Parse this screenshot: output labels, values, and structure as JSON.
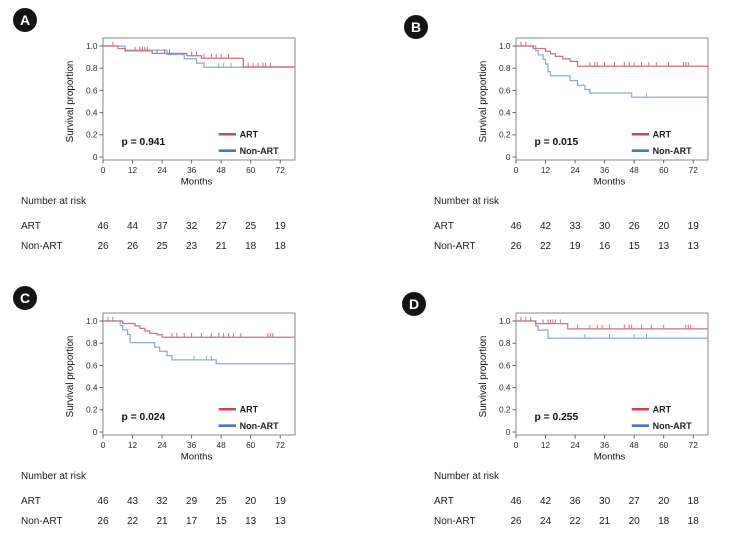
{
  "figure": {
    "ylabel": "Survival proportion",
    "xlabel": "Months"
  },
  "chart_data": [
    {
      "type": "line",
      "subtype": "kaplan-meier-step",
      "panel": "A",
      "xlabel": "Months",
      "ylabel": "Survival proportion",
      "p_value_label": "p = 0.941",
      "xlim": [
        0,
        78
      ],
      "ylim": [
        0,
        1.05
      ],
      "xticks": [
        0,
        12,
        24,
        36,
        48,
        60,
        72
      ],
      "yticks": [
        0,
        0.2,
        0.4,
        0.6,
        0.8,
        1.0
      ],
      "ytick_labels": [
        "0",
        "0.2",
        "0.4",
        "0.6",
        "0.8",
        "1.0"
      ],
      "grid": false,
      "legend_position": "inside-lower-right",
      "legend": [
        {
          "name": "ART",
          "color": "#c04a59"
        },
        {
          "name": "Non-ART",
          "color": "#4d74ba"
        }
      ],
      "series": [
        {
          "name": "Non-ART",
          "line_color": "#8fa9d1",
          "steps": [
            [
              9,
              0.962
            ],
            [
              26,
              0.923
            ],
            [
              33,
              0.885
            ],
            [
              38,
              0.846
            ],
            [
              41,
              0.808
            ]
          ],
          "censor_ticks": [
            47,
            49,
            52
          ]
        },
        {
          "name": "ART",
          "line_color": "#c5737f",
          "steps": [
            [
              6,
              0.978
            ],
            [
              9,
              0.956
            ],
            [
              20,
              0.934
            ],
            [
              34,
              0.912
            ],
            [
              40,
              0.89
            ],
            [
              57,
              0.812
            ]
          ],
          "censor_ticks": [
            4,
            13,
            15,
            16,
            17,
            18,
            22,
            25,
            27,
            36,
            38,
            41,
            44,
            46,
            48,
            51,
            59,
            61,
            63,
            65,
            66,
            68
          ]
        }
      ],
      "number_at_risk": {
        "title": "Number at risk",
        "months": [
          0,
          12,
          24,
          36,
          48,
          60,
          72
        ],
        "rows": [
          {
            "label": "ART",
            "values": [
              46,
              44,
              37,
              32,
              27,
              25,
              19
            ]
          },
          {
            "label": "Non-ART",
            "values": [
              26,
              26,
              25,
              23,
              21,
              18,
              18
            ]
          }
        ]
      }
    },
    {
      "type": "line",
      "subtype": "kaplan-meier-step",
      "panel": "B",
      "xlabel": "Months",
      "ylabel": "Survival proportion",
      "p_value_label": "p = 0.015",
      "xlim": [
        0,
        78
      ],
      "ylim": [
        0,
        1.05
      ],
      "xticks": [
        0,
        12,
        24,
        36,
        48,
        60,
        72
      ],
      "yticks": [
        0,
        0.2,
        0.4,
        0.6,
        0.8,
        1.0
      ],
      "ytick_labels": [
        "0",
        "0.2",
        "0.4",
        "0.6",
        "0.8",
        "1.0"
      ],
      "grid": false,
      "legend_position": "inside-lower-right",
      "legend": [
        {
          "name": "ART",
          "color": "#c04a59"
        },
        {
          "name": "Non-ART",
          "color": "#4d74ba"
        }
      ],
      "series": [
        {
          "name": "Non-ART",
          "line_color": "#8fa9d1",
          "steps": [
            [
              8,
              0.96
            ],
            [
              9,
              0.92
            ],
            [
              11,
              0.879
            ],
            [
              12,
              0.838
            ],
            [
              13,
              0.769
            ],
            [
              14,
              0.731
            ],
            [
              22,
              0.688
            ],
            [
              25,
              0.646
            ],
            [
              28,
              0.608
            ],
            [
              30,
              0.577
            ],
            [
              47,
              0.538
            ]
          ],
          "censor_ticks": [
            53
          ]
        },
        {
          "name": "ART",
          "line_color": "#c5737f",
          "steps": [
            [
              7,
              0.977
            ],
            [
              12,
              0.953
            ],
            [
              14,
              0.93
            ],
            [
              16,
              0.907
            ],
            [
              19,
              0.884
            ],
            [
              22,
              0.861
            ],
            [
              25,
              0.818
            ]
          ],
          "censor_ticks": [
            2,
            4,
            30,
            32,
            33,
            36,
            40,
            44,
            46,
            48,
            51,
            54,
            57,
            62,
            68,
            69,
            70
          ]
        }
      ],
      "number_at_risk": {
        "title": "Number at risk",
        "months": [
          0,
          12,
          24,
          36,
          48,
          60,
          72
        ],
        "rows": [
          {
            "label": "ART",
            "values": [
              46,
              42,
              33,
              30,
              26,
              20,
              19
            ]
          },
          {
            "label": "Non-ART",
            "values": [
              26,
              22,
              19,
              16,
              15,
              13,
              13
            ]
          }
        ]
      }
    },
    {
      "type": "line",
      "subtype": "kaplan-meier-step",
      "panel": "C",
      "xlabel": "Months",
      "ylabel": "Survival proportion",
      "p_value_label": "p = 0.024",
      "xlim": [
        0,
        78
      ],
      "ylim": [
        0,
        1.05
      ],
      "xticks": [
        0,
        12,
        24,
        36,
        48,
        60,
        72
      ],
      "yticks": [
        0,
        0.2,
        0.4,
        0.6,
        0.8,
        1.0
      ],
      "ytick_labels": [
        "0",
        "0.2",
        "0.4",
        "0.6",
        "0.8",
        "1.0"
      ],
      "grid": false,
      "legend_position": "inside-lower-right",
      "legend": [
        {
          "name": "ART",
          "color": "#c04a59"
        },
        {
          "name": "Non-ART",
          "color": "#4d74ba"
        }
      ],
      "series": [
        {
          "name": "Non-ART",
          "line_color": "#8fa9d1",
          "steps": [
            [
              7,
              0.96
            ],
            [
              8,
              0.92
            ],
            [
              10,
              0.879
            ],
            [
              11,
              0.805
            ],
            [
              21,
              0.765
            ],
            [
              23,
              0.727
            ],
            [
              26,
              0.688
            ],
            [
              28,
              0.65
            ],
            [
              46,
              0.615
            ]
          ],
          "censor_ticks": [
            37,
            42,
            44
          ]
        },
        {
          "name": "ART",
          "line_color": "#c5737f",
          "steps": [
            [
              8,
              0.978
            ],
            [
              13,
              0.956
            ],
            [
              15,
              0.933
            ],
            [
              17,
              0.911
            ],
            [
              19,
              0.889
            ],
            [
              22,
              0.876
            ],
            [
              24,
              0.854
            ]
          ],
          "censor_ticks": [
            2,
            4,
            28,
            30,
            33,
            36,
            40,
            44,
            47,
            49,
            51,
            53,
            56,
            67,
            68,
            69
          ]
        }
      ],
      "number_at_risk": {
        "title": "Number at risk",
        "months": [
          0,
          12,
          24,
          36,
          48,
          60,
          72
        ],
        "rows": [
          {
            "label": "ART",
            "values": [
              46,
              43,
              32,
              29,
              25,
              20,
              19
            ]
          },
          {
            "label": "Non-ART",
            "values": [
              26,
              22,
              21,
              17,
              15,
              13,
              13
            ]
          }
        ]
      }
    },
    {
      "type": "line",
      "subtype": "kaplan-meier-step",
      "panel": "D",
      "xlabel": "Months",
      "ylabel": "Survival proportion",
      "p_value_label": "p = 0.255",
      "xlim": [
        0,
        78
      ],
      "ylim": [
        0,
        1.05
      ],
      "xticks": [
        0,
        12,
        24,
        36,
        48,
        60,
        72
      ],
      "yticks": [
        0,
        0.2,
        0.4,
        0.6,
        0.8,
        1.0
      ],
      "ytick_labels": [
        "0",
        "0.2",
        "0.4",
        "0.6",
        "0.8",
        "1.0"
      ],
      "grid": false,
      "legend_position": "inside-lower-right",
      "legend": [
        {
          "name": "ART",
          "color": "#c04a59"
        },
        {
          "name": "Non-ART",
          "color": "#4d74ba"
        }
      ],
      "series": [
        {
          "name": "Non-ART",
          "line_color": "#8fa9d1",
          "steps": [
            [
              8,
              0.955
            ],
            [
              9,
              0.918
            ],
            [
              13,
              0.845
            ]
          ],
          "censor_ticks": [
            28,
            38,
            48,
            53
          ]
        },
        {
          "name": "ART",
          "line_color": "#c5737f",
          "steps": [
            [
              8,
              0.976
            ],
            [
              21,
              0.929
            ]
          ],
          "censor_ticks": [
            2,
            4,
            6,
            11,
            13,
            14,
            15,
            16,
            18,
            25,
            30,
            33,
            35,
            38,
            44,
            46,
            47,
            51,
            55,
            60,
            69,
            70,
            71
          ]
        }
      ],
      "number_at_risk": {
        "title": "Number at risk",
        "months": [
          0,
          12,
          24,
          36,
          48,
          60,
          72
        ],
        "rows": [
          {
            "label": "ART",
            "values": [
              46,
              42,
              36,
              30,
              27,
              20,
              18
            ]
          },
          {
            "label": "Non-ART",
            "values": [
              26,
              24,
              22,
              21,
              20,
              18,
              18
            ]
          }
        ]
      }
    }
  ]
}
